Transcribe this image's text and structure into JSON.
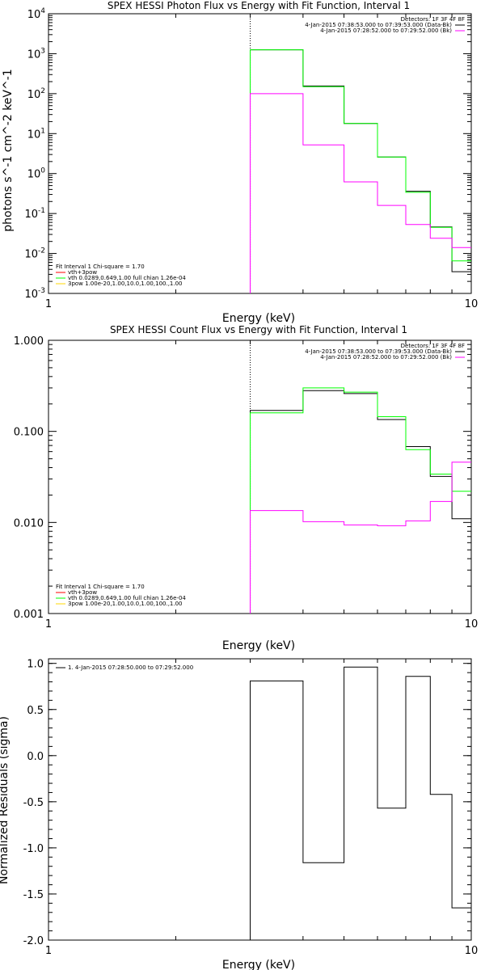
{
  "chart_data": [
    {
      "type": "line",
      "title": "SPEX HESSI Photon Flux vs Energy with Fit Function, Interval 1",
      "xlabel": "Energy (keV)",
      "ylabel": "photons s^-1 cm^-2 keV^-1",
      "xscale": "log",
      "yscale": "log",
      "xlim": [
        1,
        10
      ],
      "ylim": [
        0.001,
        10000
      ],
      "x_ticks": [
        {
          "value": 1,
          "label": "1"
        },
        {
          "value": 10,
          "label": "10"
        }
      ],
      "y_ticks": [
        {
          "value": 0.001,
          "base": "10",
          "exp": "-3"
        },
        {
          "value": 0.01,
          "base": "10",
          "exp": "-2"
        },
        {
          "value": 0.1,
          "base": "10",
          "exp": "-1"
        },
        {
          "value": 1,
          "base": "10",
          "exp": "0"
        },
        {
          "value": 10,
          "base": "10",
          "exp": "1"
        },
        {
          "value": 100,
          "base": "10",
          "exp": "2"
        },
        {
          "value": 1000,
          "base": "10",
          "exp": "3"
        },
        {
          "value": 10000,
          "base": "10",
          "exp": "4"
        }
      ],
      "vline_x": 3.0,
      "legend_right": {
        "header": "Detectors: 1F 3F 4F 8F",
        "entries": [
          {
            "text": "4-Jan-2015 07:38:53.000 to 07:39:53.000 (Data-Bk)",
            "color": "#000000"
          },
          {
            "text": "4-Jan-2015 07:28:52.000 to 07:29:52.000 (Bk)",
            "color": "#ff00ff"
          }
        ]
      },
      "legend_left": {
        "header": "Fit Interval 1    Chi-square = 1.70",
        "entries": [
          {
            "text": "vth+3pow",
            "color": "#ff0000"
          },
          {
            "text": "vth 0.0289,0.649,1.00   full chian 1.26e-04",
            "color": "#00ff00"
          },
          {
            "text": "3pow 1.00e-20,1.00,10.0,1.00,100.,1.00",
            "color": "#ffd700"
          }
        ]
      },
      "series": [
        {
          "name": "Data-Bk",
          "color": "#000000",
          "edges": [
            3.0,
            4.0,
            5.0,
            6.0,
            7.0,
            8.0,
            9.0,
            10.0
          ],
          "values": [
            1250,
            155,
            18,
            2.6,
            0.36,
            0.046,
            0.0035
          ]
        },
        {
          "name": "vth+3pow",
          "color": "#00ff00",
          "edges": [
            3.0,
            4.0,
            5.0,
            6.0,
            7.0,
            8.0,
            9.0,
            10.0
          ],
          "values": [
            1250,
            150,
            18,
            2.6,
            0.34,
            0.045,
            0.0065
          ]
        },
        {
          "name": "Bk",
          "color": "#ff00ff",
          "edges": [
            3.0,
            4.0,
            5.0,
            6.0,
            7.0,
            8.0,
            9.0,
            10.0
          ],
          "values": [
            100,
            5.2,
            0.62,
            0.16,
            0.053,
            0.024,
            0.014
          ]
        }
      ]
    },
    {
      "type": "line",
      "title": "SPEX HESSI Count Flux vs Energy with Fit Function, Interval 1",
      "xlabel": "Energy (keV)",
      "ylabel": "",
      "xscale": "log",
      "yscale": "log",
      "xlim": [
        1,
        10
      ],
      "ylim": [
        0.001,
        1.0
      ],
      "x_ticks": [
        {
          "value": 1,
          "label": "1"
        },
        {
          "value": 10,
          "label": "10"
        }
      ],
      "y_ticks": [
        {
          "value": 0.001,
          "label": "0.001"
        },
        {
          "value": 0.01,
          "label": "0.010"
        },
        {
          "value": 0.1,
          "label": "0.100"
        },
        {
          "value": 1.0,
          "label": "1.000"
        }
      ],
      "vline_x": 3.0,
      "legend_right": {
        "header": "Detectors: 1F 3F 4F 8F",
        "entries": [
          {
            "text": "4-Jan-2015 07:38:53.000 to 07:39:53.000 (Data-Bk)",
            "color": "#000000"
          },
          {
            "text": "4-Jan-2015 07:28:52.000 to 07:29:52.000 (Bk)",
            "color": "#ff00ff"
          }
        ]
      },
      "legend_left": {
        "header": "Fit Interval 1    Chi-square = 1.70",
        "entries": [
          {
            "text": "vth+3pow",
            "color": "#ff0000"
          },
          {
            "text": "vth 0.0289,0.649,1.00   full chian 1.26e-04",
            "color": "#00ff00"
          },
          {
            "text": "3pow 1.00e-20,1.00,10.0,1.00,100.,1.00",
            "color": "#ffd700"
          }
        ]
      },
      "series": [
        {
          "name": "Data-Bk",
          "color": "#000000",
          "edges": [
            3.0,
            4.0,
            5.0,
            6.0,
            7.0,
            8.0,
            9.0,
            10.0
          ],
          "values": [
            0.17,
            0.28,
            0.26,
            0.135,
            0.068,
            0.032,
            0.011
          ]
        },
        {
          "name": "vth+3pow",
          "color": "#00ff00",
          "edges": [
            3.0,
            4.0,
            5.0,
            6.0,
            7.0,
            8.0,
            9.0,
            10.0
          ],
          "values": [
            0.16,
            0.3,
            0.27,
            0.145,
            0.063,
            0.034,
            0.022
          ]
        },
        {
          "name": "Bk",
          "color": "#ff00ff",
          "edges": [
            3.0,
            4.0,
            5.0,
            6.0,
            7.0,
            8.0,
            9.0,
            10.0
          ],
          "values": [
            0.0135,
            0.0102,
            0.0094,
            0.0092,
            0.0104,
            0.017,
            0.046
          ]
        }
      ]
    },
    {
      "type": "line",
      "title": "",
      "xlabel": "Energy (keV)",
      "ylabel": "Normalized Residuals (sigma)",
      "xscale": "log",
      "yscale": "linear",
      "xlim": [
        1,
        10
      ],
      "ylim": [
        -2.0,
        1.05
      ],
      "x_ticks": [
        {
          "value": 1,
          "label": "1"
        },
        {
          "value": 10,
          "label": "10"
        }
      ],
      "y_ticks": [
        {
          "value": -2.0,
          "label": "-2.0"
        },
        {
          "value": -1.5,
          "label": "-1.5"
        },
        {
          "value": -1.0,
          "label": "-1.0"
        },
        {
          "value": -0.5,
          "label": "-0.5"
        },
        {
          "value": 0.0,
          "label": "0.0"
        },
        {
          "value": 0.5,
          "label": "0.5"
        },
        {
          "value": 1.0,
          "label": "1.0"
        }
      ],
      "legend_right": null,
      "legend_left": {
        "header": "",
        "entries": [
          {
            "text": "1.  4-Jan-2015 07:28:50.000 to 07:29:52.000",
            "color": "#000000"
          }
        ]
      },
      "series": [
        {
          "name": "1.  4-Jan-2015 07:28:50.000 to 07:29:52.000",
          "color": "#000000",
          "edges": [
            3.0,
            4.0,
            5.0,
            6.0,
            7.0,
            8.0,
            9.0,
            10.0
          ],
          "values": [
            0.81,
            -1.16,
            0.96,
            -0.57,
            0.86,
            -0.42,
            -1.65
          ]
        }
      ]
    }
  ]
}
